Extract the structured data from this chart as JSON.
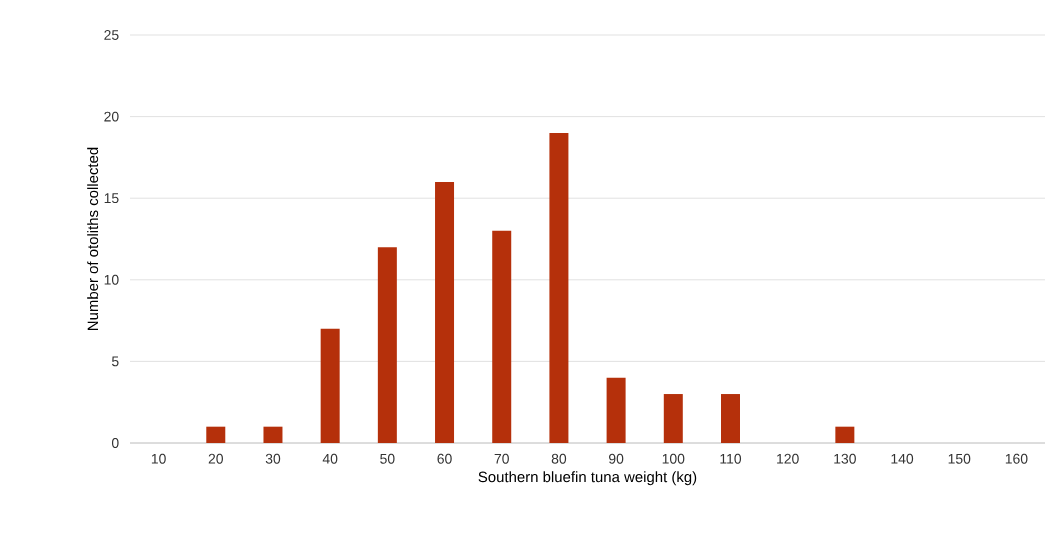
{
  "chart_data": {
    "type": "bar",
    "xlabel": "Southern bluefin tuna weight (kg)",
    "ylabel": "Number of otoliths collected",
    "categories": [
      "10",
      "20",
      "30",
      "40",
      "50",
      "60",
      "70",
      "80",
      "90",
      "100",
      "110",
      "120",
      "130",
      "140",
      "150",
      "160"
    ],
    "values": [
      0,
      1,
      1,
      7,
      12,
      16,
      13,
      19,
      4,
      3,
      3,
      0,
      1,
      0,
      0,
      0
    ],
    "color": "#b5300b",
    "ylim": [
      0,
      25
    ],
    "yticks": [
      0,
      5,
      10,
      15,
      20,
      25
    ],
    "grid": "y"
  }
}
